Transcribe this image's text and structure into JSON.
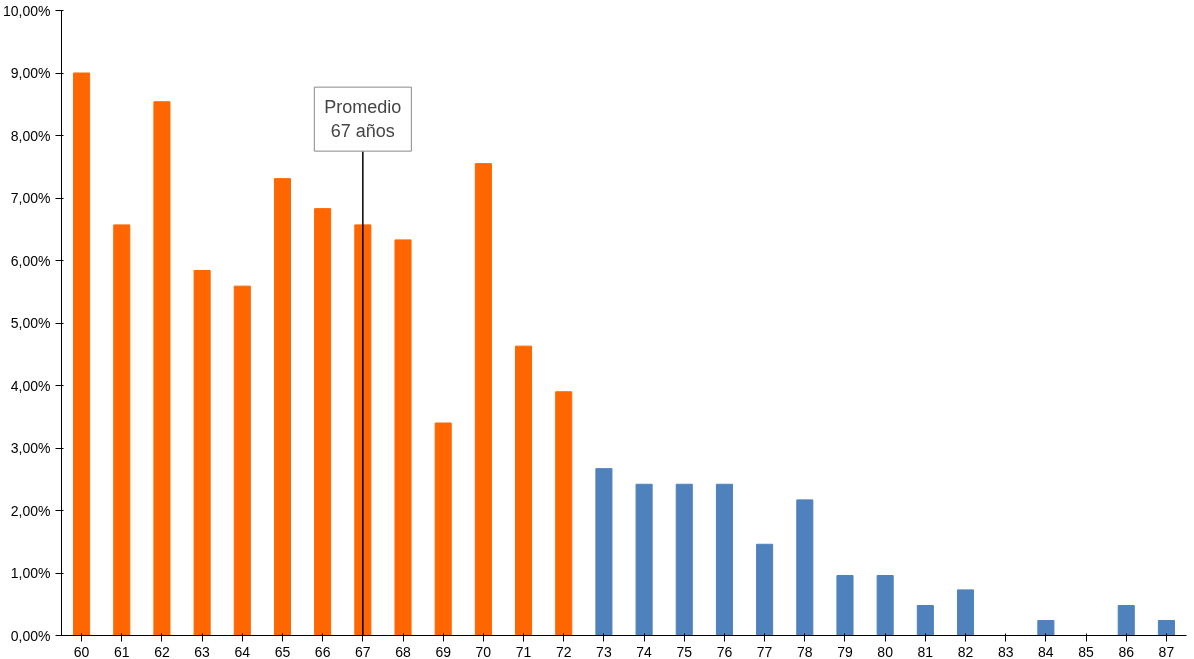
{
  "chart_data": {
    "type": "bar",
    "categories": [
      "60",
      "61",
      "62",
      "63",
      "64",
      "65",
      "66",
      "67",
      "68",
      "69",
      "70",
      "71",
      "72",
      "73",
      "74",
      "75",
      "76",
      "77",
      "78",
      "79",
      "80",
      "81",
      "82",
      "83",
      "84",
      "85",
      "86",
      "87"
    ],
    "values": [
      9.0,
      6.57,
      8.54,
      5.84,
      5.59,
      7.31,
      6.83,
      6.57,
      6.33,
      3.4,
      7.55,
      4.63,
      3.9,
      2.67,
      2.42,
      2.42,
      2.42,
      1.46,
      2.17,
      0.96,
      0.96,
      0.48,
      0.73,
      0,
      0.24,
      0,
      0.48,
      0.24
    ],
    "colors": [
      "#ff6600",
      "#ff6600",
      "#ff6600",
      "#ff6600",
      "#ff6600",
      "#ff6600",
      "#ff6600",
      "#ff6600",
      "#ff6600",
      "#ff6600",
      "#ff6600",
      "#ff6600",
      "#ff6600",
      "#4f81bd",
      "#4f81bd",
      "#4f81bd",
      "#4f81bd",
      "#4f81bd",
      "#4f81bd",
      "#4f81bd",
      "#4f81bd",
      "#4f81bd",
      "#4f81bd",
      "#4f81bd",
      "#4f81bd",
      "#4f81bd",
      "#4f81bd",
      "#4f81bd"
    ],
    "ylim": [
      0,
      10
    ],
    "yticks": [
      {
        "value": 0,
        "label": "0,00%"
      },
      {
        "value": 1,
        "label": "1,00%"
      },
      {
        "value": 2,
        "label": "2,00%"
      },
      {
        "value": 3,
        "label": "3,00%"
      },
      {
        "value": 4,
        "label": "4,00%"
      },
      {
        "value": 5,
        "label": "5,00%"
      },
      {
        "value": 6,
        "label": "6,00%"
      },
      {
        "value": 7,
        "label": "7,00%"
      },
      {
        "value": 8,
        "label": "8,00%"
      },
      {
        "value": 9,
        "label": "9,00%"
      },
      {
        "value": 10,
        "label": "10,00%"
      }
    ],
    "grid": false,
    "ref_lines": [
      {
        "axis": "x",
        "value": "67",
        "label": "Promedio\n67 años",
        "color": "#000000"
      }
    ]
  }
}
